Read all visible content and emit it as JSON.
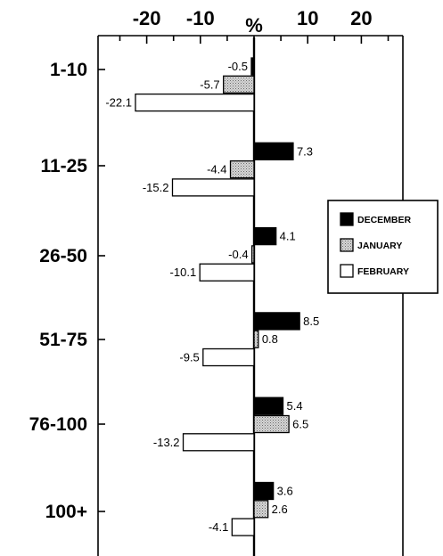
{
  "chart_data": {
    "type": "bar",
    "orientation": "horizontal",
    "unit_label": "%",
    "xlim": [
      -25,
      25
    ],
    "x_ticks": [
      {
        "value": -20,
        "label": "-20"
      },
      {
        "value": -10,
        "label": "-10"
      },
      {
        "value": 10,
        "label": "10"
      },
      {
        "value": 20,
        "label": "20"
      }
    ],
    "categories": [
      "1-10",
      "11-25",
      "26-50",
      "51-75",
      "76-100",
      "100+"
    ],
    "series": [
      {
        "name": "DECEMBER",
        "color": "#000000",
        "fill": "solid",
        "values": [
          -0.5,
          7.3,
          4.1,
          8.5,
          5.4,
          3.6
        ],
        "labels": [
          "-0.5",
          "7.3",
          "4.1",
          "8.5",
          "5.4",
          "3.6"
        ]
      },
      {
        "name": "JANUARY",
        "color": "#b8b8b8",
        "fill": "dotted",
        "values": [
          -5.7,
          -4.4,
          -0.4,
          0.8,
          6.5,
          2.6
        ],
        "labels": [
          "-5.7",
          "-4.4",
          "-0.4",
          "0.8",
          "6.5",
          "2.6"
        ]
      },
      {
        "name": "FEBRUARY",
        "color": "#ffffff",
        "fill": "white",
        "values": [
          -22.1,
          -15.2,
          -10.1,
          -9.5,
          -13.2,
          -4.1
        ],
        "labels": [
          "-22.1",
          "-15.2",
          "-10.1",
          "-9.5",
          "-13.2",
          "-4.1"
        ]
      }
    ],
    "legend_position": "right",
    "grid": false
  }
}
